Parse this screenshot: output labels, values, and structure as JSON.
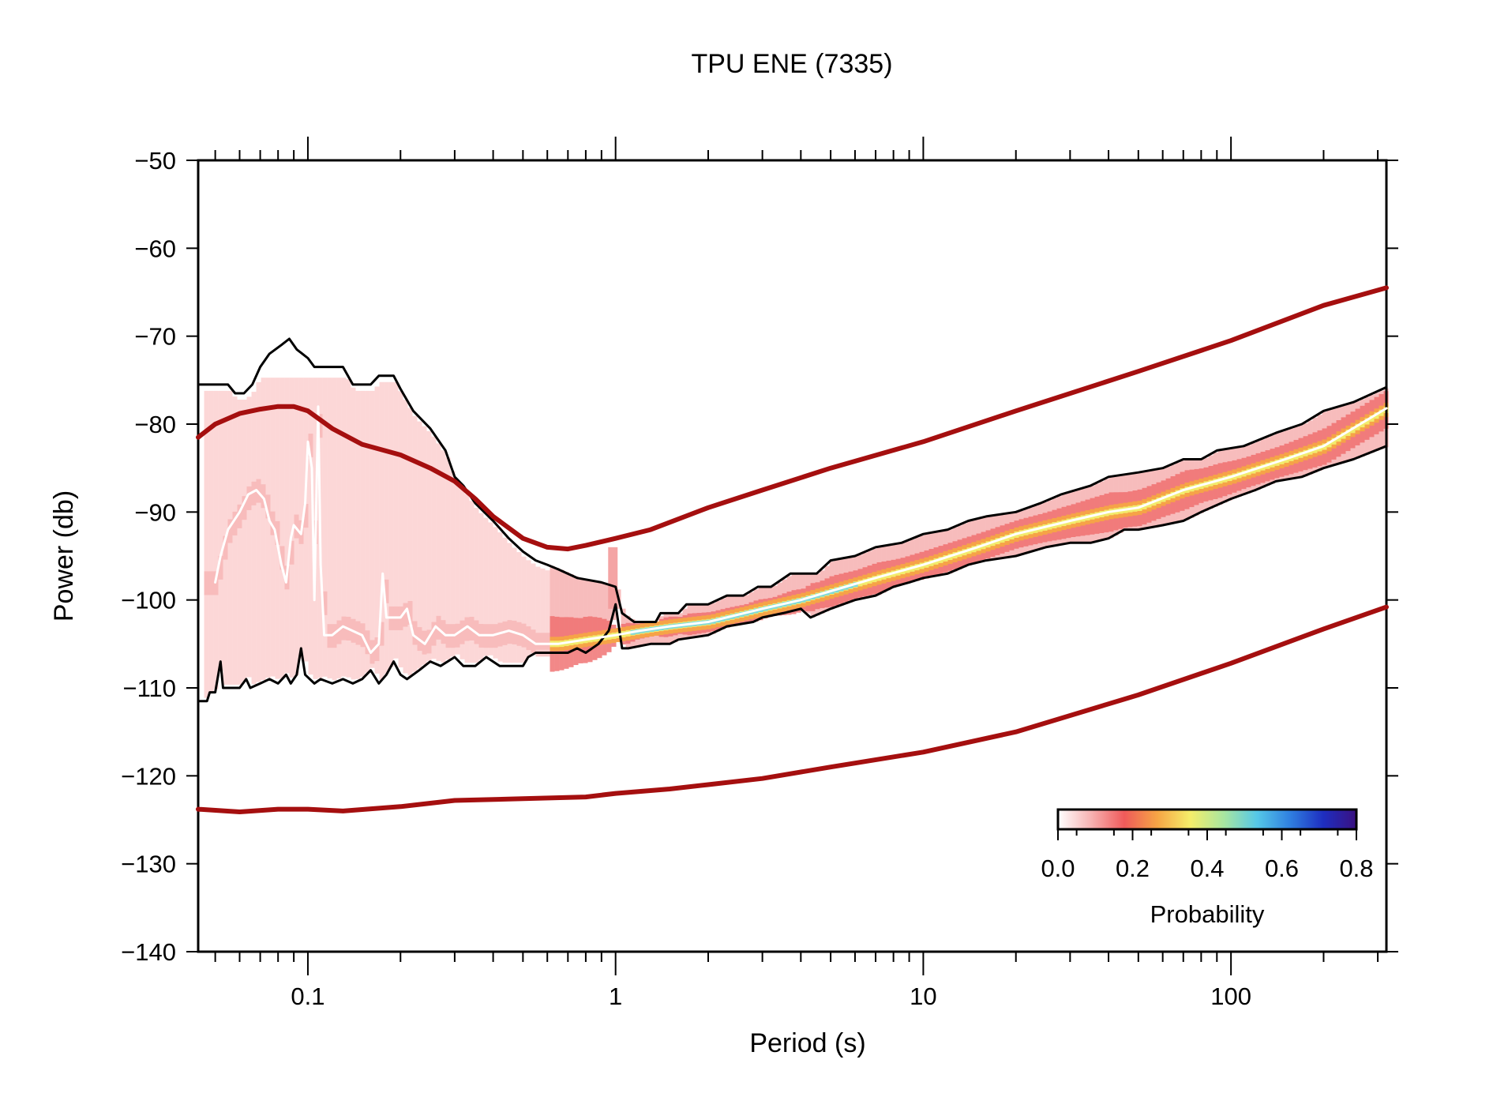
{
  "chart_data": {
    "type": "line",
    "title": "TPU ENE (7335)",
    "xlabel": "Period (s)",
    "ylabel": "Power (db)",
    "xscale": "log",
    "xlim": [
      0.044,
      320
    ],
    "ylim": [
      -140,
      -50
    ],
    "x_ticks": [
      0.1,
      1,
      10,
      100
    ],
    "x_tick_labels": [
      "0.1",
      "1",
      "10",
      "100"
    ],
    "y_ticks": [
      -50,
      -60,
      -70,
      -80,
      -90,
      -100,
      -110,
      -120,
      -130,
      -140
    ],
    "y_tick_labels": [
      "−50",
      "−60",
      "−70",
      "−80",
      "−90",
      "−100",
      "−110",
      "−120",
      "−130",
      "−140"
    ],
    "colorbar": {
      "label": "Probability",
      "ticks": [
        "0.0",
        "0.2",
        "0.4",
        "0.6",
        "0.8"
      ],
      "range": [
        0,
        0.8
      ],
      "placement": "bottom-right",
      "colors": [
        "#ffffff",
        "#f7b2b2",
        "#ef5a5a",
        "#f6a545",
        "#f5ee6a",
        "#a8e6a0",
        "#55c8e8",
        "#2f7fe0",
        "#1e2ec0",
        "#3a1080"
      ]
    },
    "series": [
      {
        "role": "model-high",
        "color": "#a50f0f",
        "points": [
          [
            0.044,
            -81.5
          ],
          [
            0.05,
            -80
          ],
          [
            0.06,
            -78.8
          ],
          [
            0.07,
            -78.3
          ],
          [
            0.08,
            -78
          ],
          [
            0.09,
            -78
          ],
          [
            0.1,
            -78.5
          ],
          [
            0.12,
            -80.5
          ],
          [
            0.15,
            -82.3
          ],
          [
            0.2,
            -83.5
          ],
          [
            0.25,
            -85
          ],
          [
            0.3,
            -86.5
          ],
          [
            0.35,
            -88.5
          ],
          [
            0.4,
            -90.5
          ],
          [
            0.5,
            -93
          ],
          [
            0.6,
            -94
          ],
          [
            0.7,
            -94.2
          ],
          [
            0.8,
            -93.8
          ],
          [
            1,
            -93
          ],
          [
            1.3,
            -92
          ],
          [
            2,
            -89.5
          ],
          [
            3,
            -87.5
          ],
          [
            5,
            -85
          ],
          [
            10,
            -82
          ],
          [
            20,
            -78.5
          ],
          [
            50,
            -74
          ],
          [
            100,
            -70.5
          ],
          [
            200,
            -66.5
          ],
          [
            320,
            -64.5
          ]
        ]
      },
      {
        "role": "model-low",
        "color": "#a50f0f",
        "points": [
          [
            0.044,
            -123.8
          ],
          [
            0.06,
            -124.1
          ],
          [
            0.08,
            -123.8
          ],
          [
            0.1,
            -123.8
          ],
          [
            0.13,
            -124
          ],
          [
            0.2,
            -123.5
          ],
          [
            0.3,
            -122.8
          ],
          [
            0.5,
            -122.6
          ],
          [
            0.8,
            -122.4
          ],
          [
            1,
            -122
          ],
          [
            1.5,
            -121.5
          ],
          [
            2,
            -121
          ],
          [
            3,
            -120.3
          ],
          [
            5,
            -119
          ],
          [
            10,
            -117.3
          ],
          [
            20,
            -115
          ],
          [
            50,
            -110.8
          ],
          [
            100,
            -107.2
          ],
          [
            200,
            -103.3
          ],
          [
            320,
            -100.8
          ]
        ]
      },
      {
        "role": "maximum",
        "color": "#000000",
        "points": [
          [
            0.044,
            -75.5
          ],
          [
            0.055,
            -75.5
          ],
          [
            0.058,
            -76.5
          ],
          [
            0.062,
            -76.5
          ],
          [
            0.066,
            -75.5
          ],
          [
            0.07,
            -73.5
          ],
          [
            0.075,
            -72
          ],
          [
            0.082,
            -71
          ],
          [
            0.087,
            -70.3
          ],
          [
            0.092,
            -71.5
          ],
          [
            0.1,
            -72.5
          ],
          [
            0.105,
            -73.5
          ],
          [
            0.13,
            -73.5
          ],
          [
            0.14,
            -75.5
          ],
          [
            0.16,
            -75.5
          ],
          [
            0.17,
            -74.5
          ],
          [
            0.19,
            -74.5
          ],
          [
            0.2,
            -76
          ],
          [
            0.22,
            -78.5
          ],
          [
            0.25,
            -80.5
          ],
          [
            0.28,
            -83
          ],
          [
            0.3,
            -86
          ],
          [
            0.32,
            -87
          ],
          [
            0.35,
            -89
          ],
          [
            0.4,
            -91
          ],
          [
            0.45,
            -93
          ],
          [
            0.5,
            -94.5
          ],
          [
            0.55,
            -95.5
          ],
          [
            0.6,
            -96
          ],
          [
            0.65,
            -96.5
          ],
          [
            0.75,
            -97.5
          ],
          [
            0.9,
            -98
          ],
          [
            1,
            -98.5
          ],
          [
            1.05,
            -101.5
          ],
          [
            1.15,
            -102.5
          ],
          [
            1.35,
            -102.5
          ],
          [
            1.4,
            -101.5
          ],
          [
            1.6,
            -101.5
          ],
          [
            1.7,
            -100.5
          ],
          [
            2,
            -100.5
          ],
          [
            2.3,
            -99.5
          ],
          [
            2.6,
            -99.5
          ],
          [
            2.9,
            -98.5
          ],
          [
            3.2,
            -98.5
          ],
          [
            3.7,
            -97
          ],
          [
            4.5,
            -97
          ],
          [
            5,
            -95.5
          ],
          [
            6,
            -95
          ],
          [
            7,
            -94
          ],
          [
            8.5,
            -93.5
          ],
          [
            10,
            -92.5
          ],
          [
            12,
            -92
          ],
          [
            14,
            -91
          ],
          [
            16,
            -90.5
          ],
          [
            20,
            -90
          ],
          [
            24,
            -89
          ],
          [
            28,
            -88
          ],
          [
            35,
            -87
          ],
          [
            40,
            -86
          ],
          [
            50,
            -85.5
          ],
          [
            60,
            -85
          ],
          [
            70,
            -84
          ],
          [
            80,
            -84
          ],
          [
            90,
            -83
          ],
          [
            110,
            -82.5
          ],
          [
            140,
            -81
          ],
          [
            170,
            -80
          ],
          [
            200,
            -78.5
          ],
          [
            250,
            -77.5
          ],
          [
            320,
            -75.8
          ]
        ]
      },
      {
        "role": "minimum",
        "color": "#000000",
        "points": [
          [
            0.044,
            -111.5
          ],
          [
            0.047,
            -111.5
          ],
          [
            0.048,
            -110.5
          ],
          [
            0.05,
            -110.5
          ],
          [
            0.052,
            -107
          ],
          [
            0.053,
            -110
          ],
          [
            0.056,
            -110
          ],
          [
            0.06,
            -110
          ],
          [
            0.063,
            -109
          ],
          [
            0.065,
            -110
          ],
          [
            0.07,
            -109.5
          ],
          [
            0.075,
            -109
          ],
          [
            0.08,
            -109.5
          ],
          [
            0.085,
            -108.5
          ],
          [
            0.088,
            -109.5
          ],
          [
            0.092,
            -108.5
          ],
          [
            0.095,
            -105.5
          ],
          [
            0.098,
            -108.5
          ],
          [
            0.105,
            -109.5
          ],
          [
            0.11,
            -109
          ],
          [
            0.12,
            -109.5
          ],
          [
            0.13,
            -109
          ],
          [
            0.14,
            -109.5
          ],
          [
            0.15,
            -109
          ],
          [
            0.16,
            -108
          ],
          [
            0.17,
            -109.5
          ],
          [
            0.18,
            -108.5
          ],
          [
            0.19,
            -107
          ],
          [
            0.2,
            -108.5
          ],
          [
            0.21,
            -109
          ],
          [
            0.23,
            -108
          ],
          [
            0.25,
            -107
          ],
          [
            0.27,
            -107.5
          ],
          [
            0.3,
            -106.5
          ],
          [
            0.32,
            -107.5
          ],
          [
            0.35,
            -107.5
          ],
          [
            0.38,
            -106.5
          ],
          [
            0.42,
            -107.5
          ],
          [
            0.45,
            -107.5
          ],
          [
            0.5,
            -107.5
          ],
          [
            0.52,
            -106.5
          ],
          [
            0.55,
            -106
          ],
          [
            0.6,
            -106
          ],
          [
            0.7,
            -106
          ],
          [
            0.75,
            -105.5
          ],
          [
            0.8,
            -106
          ],
          [
            0.88,
            -105
          ],
          [
            0.95,
            -103.5
          ],
          [
            1,
            -100.5
          ],
          [
            1.05,
            -105.5
          ],
          [
            1.1,
            -105.5
          ],
          [
            1.3,
            -105
          ],
          [
            1.5,
            -105
          ],
          [
            1.6,
            -104.5
          ],
          [
            2,
            -104
          ],
          [
            2.3,
            -103
          ],
          [
            2.8,
            -102.5
          ],
          [
            3,
            -102
          ],
          [
            3.5,
            -101.5
          ],
          [
            4,
            -101
          ],
          [
            4.3,
            -102
          ],
          [
            5,
            -101
          ],
          [
            6,
            -100
          ],
          [
            7,
            -99.5
          ],
          [
            8,
            -98.5
          ],
          [
            9,
            -98
          ],
          [
            10,
            -97.5
          ],
          [
            12,
            -97
          ],
          [
            14,
            -96
          ],
          [
            16,
            -95.5
          ],
          [
            20,
            -95
          ],
          [
            25,
            -94
          ],
          [
            30,
            -93.5
          ],
          [
            35,
            -93.5
          ],
          [
            40,
            -93
          ],
          [
            45,
            -92
          ],
          [
            50,
            -92
          ],
          [
            60,
            -91.5
          ],
          [
            70,
            -91
          ],
          [
            80,
            -90
          ],
          [
            100,
            -88.5
          ],
          [
            120,
            -87.5
          ],
          [
            140,
            -86.5
          ],
          [
            170,
            -86
          ],
          [
            200,
            -85
          ],
          [
            250,
            -84
          ],
          [
            320,
            -82.5
          ]
        ]
      },
      {
        "role": "mode",
        "color": "#ffffff",
        "points": [
          [
            0.05,
            -98
          ],
          [
            0.052,
            -95
          ],
          [
            0.055,
            -92
          ],
          [
            0.06,
            -90
          ],
          [
            0.064,
            -88
          ],
          [
            0.068,
            -87.5
          ],
          [
            0.072,
            -88.5
          ],
          [
            0.075,
            -91
          ],
          [
            0.078,
            -92
          ],
          [
            0.082,
            -96
          ],
          [
            0.085,
            -98
          ],
          [
            0.088,
            -93
          ],
          [
            0.09,
            -91.5
          ],
          [
            0.095,
            -92.5
          ],
          [
            0.098,
            -89
          ],
          [
            0.1,
            -82
          ],
          [
            0.103,
            -85
          ],
          [
            0.105,
            -100
          ],
          [
            0.108,
            -78
          ],
          [
            0.11,
            -96
          ],
          [
            0.113,
            -104
          ],
          [
            0.12,
            -104
          ],
          [
            0.13,
            -103
          ],
          [
            0.15,
            -104
          ],
          [
            0.16,
            -106
          ],
          [
            0.17,
            -105
          ],
          [
            0.175,
            -97
          ],
          [
            0.18,
            -102
          ],
          [
            0.2,
            -102
          ],
          [
            0.21,
            -101
          ],
          [
            0.22,
            -104
          ],
          [
            0.24,
            -105
          ],
          [
            0.26,
            -103
          ],
          [
            0.28,
            -104
          ],
          [
            0.3,
            -104
          ],
          [
            0.33,
            -103
          ],
          [
            0.36,
            -104
          ],
          [
            0.4,
            -104
          ],
          [
            0.45,
            -103.5
          ],
          [
            0.5,
            -104
          ],
          [
            0.55,
            -105
          ],
          [
            0.65,
            -105
          ],
          [
            0.8,
            -104.5
          ],
          [
            1,
            -104
          ],
          [
            1.2,
            -103.5
          ],
          [
            1.5,
            -103
          ],
          [
            2,
            -102.5
          ],
          [
            3,
            -101
          ],
          [
            4,
            -100
          ],
          [
            5,
            -99
          ],
          [
            7,
            -97.5
          ],
          [
            10,
            -96
          ],
          [
            15,
            -94
          ],
          [
            20,
            -92.5
          ],
          [
            30,
            -91
          ],
          [
            40,
            -90
          ],
          [
            50,
            -89.5
          ],
          [
            70,
            -87.5
          ],
          [
            100,
            -86
          ],
          [
            150,
            -84
          ],
          [
            200,
            -82.5
          ],
          [
            320,
            -78.2
          ]
        ]
      }
    ]
  }
}
